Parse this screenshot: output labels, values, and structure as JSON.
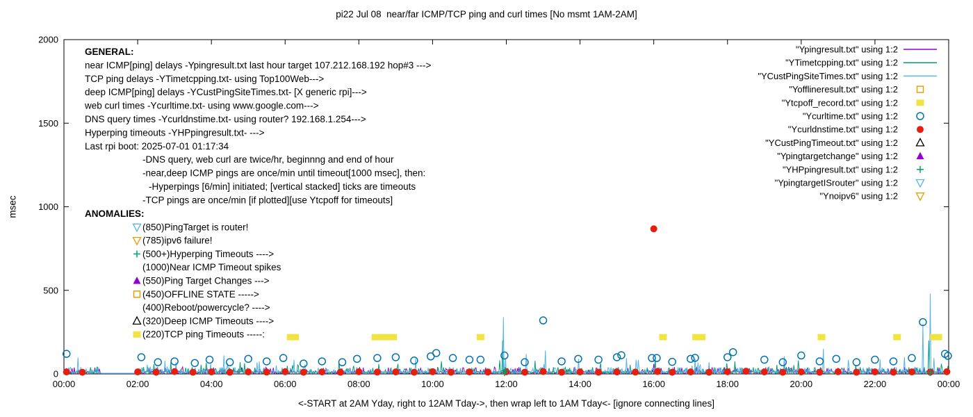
{
  "chart_data": {
    "type": "line",
    "title": "pi22 Jul 08  near/far ICMP/TCP ping and curl times [No msmt 1AM-2AM]",
    "xlabel": "<-START at 2AM Yday, right to 12AM Tday->, then wrap left to 1AM Tday<- [ignore connecting lines]",
    "ylabel": "msec",
    "xlim": [
      0,
      24
    ],
    "ylim": [
      0,
      2000
    ],
    "grid": false,
    "legend_position": "top-right",
    "yticks": [
      0,
      500,
      1000,
      1500,
      2000
    ],
    "xticks": [
      {
        "v": 0,
        "label": "00:00"
      },
      {
        "v": 2,
        "label": "02:00"
      },
      {
        "v": 4,
        "label": "04:00"
      },
      {
        "v": 6,
        "label": "06:00"
      },
      {
        "v": 8,
        "label": "08:00"
      },
      {
        "v": 10,
        "label": "10:00"
      },
      {
        "v": 12,
        "label": "12:00"
      },
      {
        "v": 14,
        "label": "14:00"
      },
      {
        "v": 16,
        "label": "16:00"
      },
      {
        "v": 18,
        "label": "18:00"
      },
      {
        "v": 20,
        "label": "20:00"
      },
      {
        "v": 22,
        "label": "22:00"
      },
      {
        "v": 24,
        "label": "00:00"
      }
    ],
    "legend": [
      {
        "label": "\"Ypingresult.txt\" using 1:2",
        "marker": "line",
        "color": "#9400d3"
      },
      {
        "label": "\"YTimetcpping.txt\" using 1:2",
        "marker": "line",
        "color": "#009e73"
      },
      {
        "label": "\"YCustPingSiteTimes.txt\" using 1:2",
        "marker": "line",
        "color": "#56b4e9"
      },
      {
        "label": "\"Yofflineresult.txt\" using 1:2",
        "marker": "square-open",
        "color": "#e69f00"
      },
      {
        "label": "\"Ytcpoff_record.txt\" using 1:2",
        "marker": "square-filled",
        "color": "#f0e442"
      },
      {
        "label": "\"Ycurltime.txt\" using 1:2",
        "marker": "circle-open",
        "color": "#0072b2"
      },
      {
        "label": "\"Ycurldnstime.txt\" using 1:2",
        "marker": "circle-filled",
        "color": "#e51e10"
      },
      {
        "label": "\"YCustPingTimeout.txt\" using 1:2",
        "marker": "triangle-open",
        "color": "#000000"
      },
      {
        "label": "\"Ypingtargetchange\" using 1:2",
        "marker": "triangle-filled",
        "color": "#9400d3"
      },
      {
        "label": "\"YHPpingresult.txt\" using 1:2",
        "marker": "plus",
        "color": "#009e73"
      },
      {
        "label": "\"YpingtargetISrouter\" using 1:2",
        "marker": "triangle-down-open",
        "color": "#56b4e9"
      },
      {
        "label": "\"Ynoipv6\" using 1:2",
        "marker": "triangle-down-open",
        "color": "#e69f00"
      }
    ],
    "series": [
      {
        "name": "Ypingresult",
        "marker": "line",
        "color": "#9400d3",
        "noise": {
          "base": 2,
          "amp": 40,
          "seed": 11
        },
        "spikes": [
          [
            16.0,
            60
          ]
        ]
      },
      {
        "name": "YTimetcpping",
        "marker": "line",
        "color": "#009e73",
        "noise": {
          "base": 3,
          "amp": 85,
          "seed": 22
        },
        "spikes": [
          [
            11.9,
            200
          ],
          [
            23.45,
            200
          ]
        ]
      },
      {
        "name": "YCustPingSiteTimes",
        "marker": "line",
        "color": "#56b4e9",
        "noise": {
          "base": 4,
          "amp": 115,
          "seed": 33
        },
        "spikes": [
          [
            11.92,
            340
          ],
          [
            23.5,
            480
          ],
          [
            23.3,
            300
          ],
          [
            13.05,
            140
          ],
          [
            4.35,
            110
          ],
          [
            20.6,
            150
          ]
        ]
      },
      {
        "name": "Yofflineresult",
        "marker": "square-open",
        "color": "#e69f00",
        "points": []
      },
      {
        "name": "Ytcpoff_record",
        "marker": "square-filled",
        "color": "#f0e442",
        "points": [
          [
            6.15,
            220
          ],
          [
            6.27,
            220
          ],
          [
            8.45,
            220
          ],
          [
            8.57,
            220
          ],
          [
            8.69,
            220
          ],
          [
            8.81,
            220
          ],
          [
            8.93,
            220
          ],
          [
            11.3,
            220
          ],
          [
            16.25,
            220
          ],
          [
            17.15,
            220
          ],
          [
            17.3,
            220
          ],
          [
            20.55,
            220
          ],
          [
            22.6,
            220
          ],
          [
            23.6,
            220
          ],
          [
            23.72,
            220
          ]
        ]
      },
      {
        "name": "Ycurltime",
        "marker": "circle-open",
        "color": "#0072b2",
        "points": [
          [
            0.07,
            120
          ],
          [
            2.1,
            100
          ],
          [
            2.55,
            70
          ],
          [
            3.0,
            75
          ],
          [
            3.55,
            65
          ],
          [
            3.95,
            85
          ],
          [
            4.5,
            70
          ],
          [
            5.0,
            90
          ],
          [
            5.5,
            75
          ],
          [
            5.95,
            95
          ],
          [
            6.5,
            62
          ],
          [
            7.0,
            75
          ],
          [
            7.55,
            70
          ],
          [
            7.95,
            90
          ],
          [
            8.5,
            95
          ],
          [
            9.0,
            100
          ],
          [
            9.5,
            80
          ],
          [
            9.95,
            105
          ],
          [
            10.1,
            125
          ],
          [
            10.55,
            95
          ],
          [
            11.0,
            85
          ],
          [
            11.3,
            85
          ],
          [
            11.95,
            110
          ],
          [
            12.5,
            70
          ],
          [
            13.0,
            320
          ],
          [
            13.5,
            75
          ],
          [
            13.95,
            90
          ],
          [
            14.5,
            85
          ],
          [
            15.0,
            100
          ],
          [
            15.12,
            112
          ],
          [
            15.95,
            95
          ],
          [
            16.08,
            95
          ],
          [
            16.5,
            72
          ],
          [
            17.0,
            90
          ],
          [
            17.12,
            96
          ],
          [
            18.0,
            100
          ],
          [
            18.15,
            130
          ],
          [
            19.0,
            85
          ],
          [
            19.5,
            70
          ],
          [
            20.0,
            110
          ],
          [
            20.5,
            75
          ],
          [
            20.95,
            90
          ],
          [
            21.5,
            70
          ],
          [
            22.0,
            85
          ],
          [
            22.5,
            75
          ],
          [
            23.0,
            95
          ],
          [
            23.3,
            310
          ],
          [
            23.9,
            120
          ],
          [
            23.98,
            108
          ]
        ]
      },
      {
        "name": "Ycurldnstime",
        "marker": "circle-filled",
        "color": "#e51e10",
        "points": [
          [
            0.07,
            12
          ],
          [
            0.5,
            10
          ],
          [
            2.0,
            12
          ],
          [
            2.5,
            10
          ],
          [
            3.0,
            14
          ],
          [
            3.5,
            10
          ],
          [
            4.0,
            12
          ],
          [
            4.5,
            10
          ],
          [
            5.0,
            12
          ],
          [
            5.5,
            11
          ],
          [
            6.0,
            13
          ],
          [
            6.5,
            10
          ],
          [
            7.0,
            12
          ],
          [
            7.5,
            10
          ],
          [
            8.0,
            13
          ],
          [
            8.5,
            11
          ],
          [
            9.0,
            12
          ],
          [
            9.5,
            10
          ],
          [
            10.0,
            13
          ],
          [
            10.5,
            10
          ],
          [
            11.0,
            12
          ],
          [
            11.5,
            11
          ],
          [
            12.0,
            13
          ],
          [
            12.5,
            10
          ],
          [
            13.0,
            14
          ],
          [
            13.5,
            10
          ],
          [
            14.0,
            12
          ],
          [
            14.5,
            10
          ],
          [
            15.0,
            12
          ],
          [
            15.5,
            11
          ],
          [
            16.0,
            868
          ],
          [
            16.1,
            14
          ],
          [
            16.5,
            10
          ],
          [
            17.0,
            12
          ],
          [
            17.5,
            10
          ],
          [
            18.0,
            13
          ],
          [
            18.5,
            16
          ],
          [
            19.0,
            12
          ],
          [
            19.5,
            10
          ],
          [
            20.0,
            12
          ],
          [
            20.5,
            10
          ],
          [
            21.0,
            13
          ],
          [
            21.5,
            10
          ],
          [
            22.0,
            12
          ],
          [
            22.5,
            10
          ],
          [
            23.0,
            12
          ],
          [
            23.5,
            11
          ],
          [
            23.95,
            13
          ]
        ]
      },
      {
        "name": "YCustPingTimeout",
        "marker": "triangle-open",
        "color": "#000000",
        "points": []
      },
      {
        "name": "Ypingtargetchange",
        "marker": "triangle-filled",
        "color": "#9400d3",
        "points": []
      },
      {
        "name": "YHPpingresult",
        "marker": "plus",
        "color": "#009e73",
        "points": [
          [
            11.95,
            8
          ],
          [
            11.97,
            20
          ],
          [
            23.5,
            8
          ]
        ]
      },
      {
        "name": "YpingtargetISrouter",
        "marker": "triangle-down-open",
        "color": "#56b4e9",
        "points": []
      },
      {
        "name": "Ynoipv6",
        "marker": "triangle-down-open",
        "color": "#e69f00",
        "points": []
      }
    ],
    "annotations": {
      "general": {
        "header": "GENERAL:",
        "lines": [
          {
            "text": "near ICMP[ping] delays -Ypingresult.txt last hour target 107.212.168.192 hop#3 --->",
            "indent": 0
          },
          {
            "text": "TCP ping delays -YTimetcpping.txt- using Top100Web--->",
            "indent": 0
          },
          {
            "text": "deep ICMP[ping] delays -YCustPingSiteTimes.txt- [X generic rpi]--->",
            "indent": 0
          },
          {
            "text": "web curl times -Ycurltime.txt- using www.google.com--->",
            "indent": 0
          },
          {
            "text": "DNS query times -Ycurldnstime.txt- using router? 192.168.1.254--->",
            "indent": 0
          },
          {
            "text": "Hyperping timeouts -YHPpingresult.txt- --->",
            "indent": 0
          },
          {
            "text": "Last rpi boot: 2025-07-01 01:17:34",
            "indent": 0
          },
          {
            "text": "-DNS query, web curl are twice/hr, beginnng and end of hour",
            "indent": 83
          },
          {
            "text": "-near,deep ICMP pings are once/min until timeout[1000 msec], then:",
            "indent": 83
          },
          {
            "text": "-Hyperpings [6/min] initiated; [vertical stacked] ticks are timeouts",
            "indent": 92
          },
          {
            "text": "-TCP pings are once/min [if plotted][use Ytcpoff for timeouts]",
            "indent": 83
          }
        ]
      },
      "anomalies": {
        "header": "ANOMALIES:",
        "items": [
          {
            "text": "(850)PingTarget is router!",
            "marker": "triangle-down-open",
            "color": "#56b4e9"
          },
          {
            "text": "(785)ipv6 failure!",
            "marker": "triangle-down-open",
            "color": "#e69f00"
          },
          {
            "text": "(500+)Hyperping Timeouts ---->",
            "marker": "plus",
            "color": "#009e73"
          },
          {
            "text": "(1000)Near ICMP Timeout spikes",
            "marker": "none",
            "color": ""
          },
          {
            "text": "(550)Ping Target Changes --->",
            "marker": "triangle-filled",
            "color": "#9400d3"
          },
          {
            "text": "(450)OFFLINE STATE ----->",
            "marker": "square-open",
            "color": "#e69f00"
          },
          {
            "text": "(400)Reboot/powercycle? ---->",
            "marker": "none",
            "color": ""
          },
          {
            "text": "(320)Deep ICMP Timeouts ---->",
            "marker": "triangle-open",
            "color": "#000000"
          },
          {
            "text": "(220)TCP ping Timeouts -----:",
            "marker": "square-filled",
            "color": "#f0e442"
          }
        ]
      }
    }
  }
}
